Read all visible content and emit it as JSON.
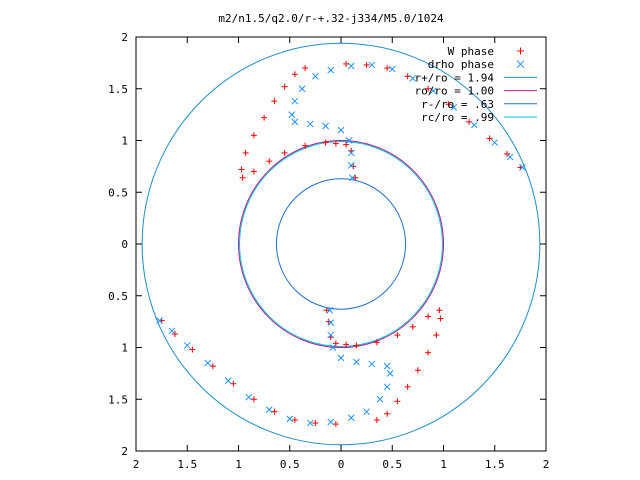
{
  "chart_data": {
    "type": "scatter",
    "title": "m2/n1.5/q2.0/r-+.32-j334/M5.0/1024",
    "xlabel": "",
    "ylabel": "",
    "xlim": [
      -2,
      2
    ],
    "ylim": [
      -2,
      2
    ],
    "x_tick_values": [
      -2,
      -1.5,
      -1,
      -0.5,
      0,
      0.5,
      1,
      1.5,
      2
    ],
    "x_tick_labels": [
      "2",
      "1.5",
      "1",
      "0.5",
      "0",
      "0.5",
      "1",
      "1.5",
      "2"
    ],
    "y_tick_values": [
      2,
      1.5,
      1,
      0.5,
      0,
      -0.5,
      -1,
      -1.5,
      -2
    ],
    "y_tick_labels": [
      "2",
      "1.5",
      "1",
      "0.5",
      "0",
      "0.5",
      "1",
      "1.5",
      "2"
    ],
    "grid": false,
    "legend_position": "top-right",
    "legend": [
      {
        "label": "W phase",
        "kind": "points",
        "marker": "+",
        "color": "#ff0000"
      },
      {
        "label": "drho phase",
        "kind": "points",
        "marker": "x",
        "color": "#1e90ff"
      },
      {
        "label": "r+/ro = 1.94",
        "kind": "circle",
        "radius": 1.94,
        "color": "#1f8ec9"
      },
      {
        "label": "ro/ro = 1.00",
        "kind": "circle",
        "radius": 1.0,
        "color": "#c71585"
      },
      {
        "label": "r-/ro = .63",
        "kind": "circle",
        "radius": 0.63,
        "color": "#1f6fc9"
      },
      {
        "label": "rc/ro = .99",
        "kind": "circle",
        "radius": 0.99,
        "color": "#00c8e0"
      }
    ],
    "series": [
      {
        "name": "W phase",
        "marker": "+",
        "color": "#ff0000",
        "points": [
          [
            0.05,
            1.74
          ],
          [
            0.25,
            1.73
          ],
          [
            0.45,
            1.7
          ],
          [
            0.65,
            1.62
          ],
          [
            0.85,
            1.5
          ],
          [
            1.05,
            1.35
          ],
          [
            1.25,
            1.18
          ],
          [
            1.45,
            1.02
          ],
          [
            1.62,
            0.87
          ],
          [
            1.75,
            0.74
          ],
          [
            -0.35,
            1.7
          ],
          [
            -0.45,
            1.64
          ],
          [
            -0.55,
            1.52
          ],
          [
            -0.65,
            1.38
          ],
          [
            -0.75,
            1.22
          ],
          [
            -0.85,
            1.05
          ],
          [
            -0.93,
            0.88
          ],
          [
            -0.97,
            0.72
          ],
          [
            -0.96,
            0.64
          ],
          [
            -0.85,
            0.7
          ],
          [
            -0.7,
            0.8
          ],
          [
            -0.55,
            0.88
          ],
          [
            -0.35,
            0.95
          ],
          [
            -0.15,
            0.98
          ],
          [
            -0.05,
            0.97
          ],
          [
            0.05,
            0.96
          ],
          [
            0.1,
            0.9
          ],
          [
            0.12,
            0.75
          ],
          [
            0.14,
            0.64
          ],
          [
            -0.05,
            -1.74
          ],
          [
            -0.25,
            -1.73
          ],
          [
            -0.45,
            -1.7
          ],
          [
            -0.65,
            -1.62
          ],
          [
            -0.85,
            -1.5
          ],
          [
            -1.05,
            -1.35
          ],
          [
            -1.25,
            -1.18
          ],
          [
            -1.45,
            -1.02
          ],
          [
            -1.62,
            -0.87
          ],
          [
            -1.75,
            -0.74
          ],
          [
            0.35,
            -1.7
          ],
          [
            0.45,
            -1.64
          ],
          [
            0.55,
            -1.52
          ],
          [
            0.65,
            -1.38
          ],
          [
            0.75,
            -1.22
          ],
          [
            0.85,
            -1.05
          ],
          [
            0.93,
            -0.88
          ],
          [
            0.97,
            -0.72
          ],
          [
            0.96,
            -0.64
          ],
          [
            0.85,
            -0.7
          ],
          [
            0.7,
            -0.8
          ],
          [
            0.55,
            -0.88
          ],
          [
            0.35,
            -0.95
          ],
          [
            0.15,
            -0.98
          ],
          [
            0.05,
            -0.97
          ],
          [
            -0.05,
            -0.96
          ],
          [
            -0.1,
            -0.9
          ],
          [
            -0.12,
            -0.75
          ],
          [
            -0.14,
            -0.64
          ]
        ]
      },
      {
        "name": "drho phase",
        "marker": "x",
        "color": "#1e90ff",
        "points": [
          [
            -0.1,
            1.68
          ],
          [
            0.1,
            1.72
          ],
          [
            0.3,
            1.73
          ],
          [
            0.5,
            1.69
          ],
          [
            0.7,
            1.6
          ],
          [
            0.9,
            1.48
          ],
          [
            1.1,
            1.32
          ],
          [
            1.3,
            1.15
          ],
          [
            1.5,
            0.98
          ],
          [
            1.65,
            0.84
          ],
          [
            1.77,
            0.74
          ],
          [
            -0.25,
            1.62
          ],
          [
            -0.38,
            1.5
          ],
          [
            -0.45,
            1.38
          ],
          [
            -0.48,
            1.25
          ],
          [
            -0.45,
            1.18
          ],
          [
            -0.3,
            1.16
          ],
          [
            -0.15,
            1.14
          ],
          [
            0.0,
            1.1
          ],
          [
            0.08,
            1.0
          ],
          [
            0.1,
            0.88
          ],
          [
            0.1,
            0.76
          ],
          [
            0.11,
            0.64
          ],
          [
            0.1,
            -1.68
          ],
          [
            -0.1,
            -1.72
          ],
          [
            -0.3,
            -1.73
          ],
          [
            -0.5,
            -1.69
          ],
          [
            -0.7,
            -1.6
          ],
          [
            -0.9,
            -1.48
          ],
          [
            -1.1,
            -1.32
          ],
          [
            -1.3,
            -1.15
          ],
          [
            -1.5,
            -0.98
          ],
          [
            -1.65,
            -0.84
          ],
          [
            -1.77,
            -0.74
          ],
          [
            0.25,
            -1.62
          ],
          [
            0.38,
            -1.5
          ],
          [
            0.45,
            -1.38
          ],
          [
            0.48,
            -1.25
          ],
          [
            0.45,
            -1.18
          ],
          [
            0.3,
            -1.16
          ],
          [
            0.15,
            -1.14
          ],
          [
            0.0,
            -1.1
          ],
          [
            -0.08,
            -1.0
          ],
          [
            -0.1,
            -0.88
          ],
          [
            -0.1,
            -0.76
          ],
          [
            -0.11,
            -0.64
          ]
        ]
      }
    ]
  }
}
